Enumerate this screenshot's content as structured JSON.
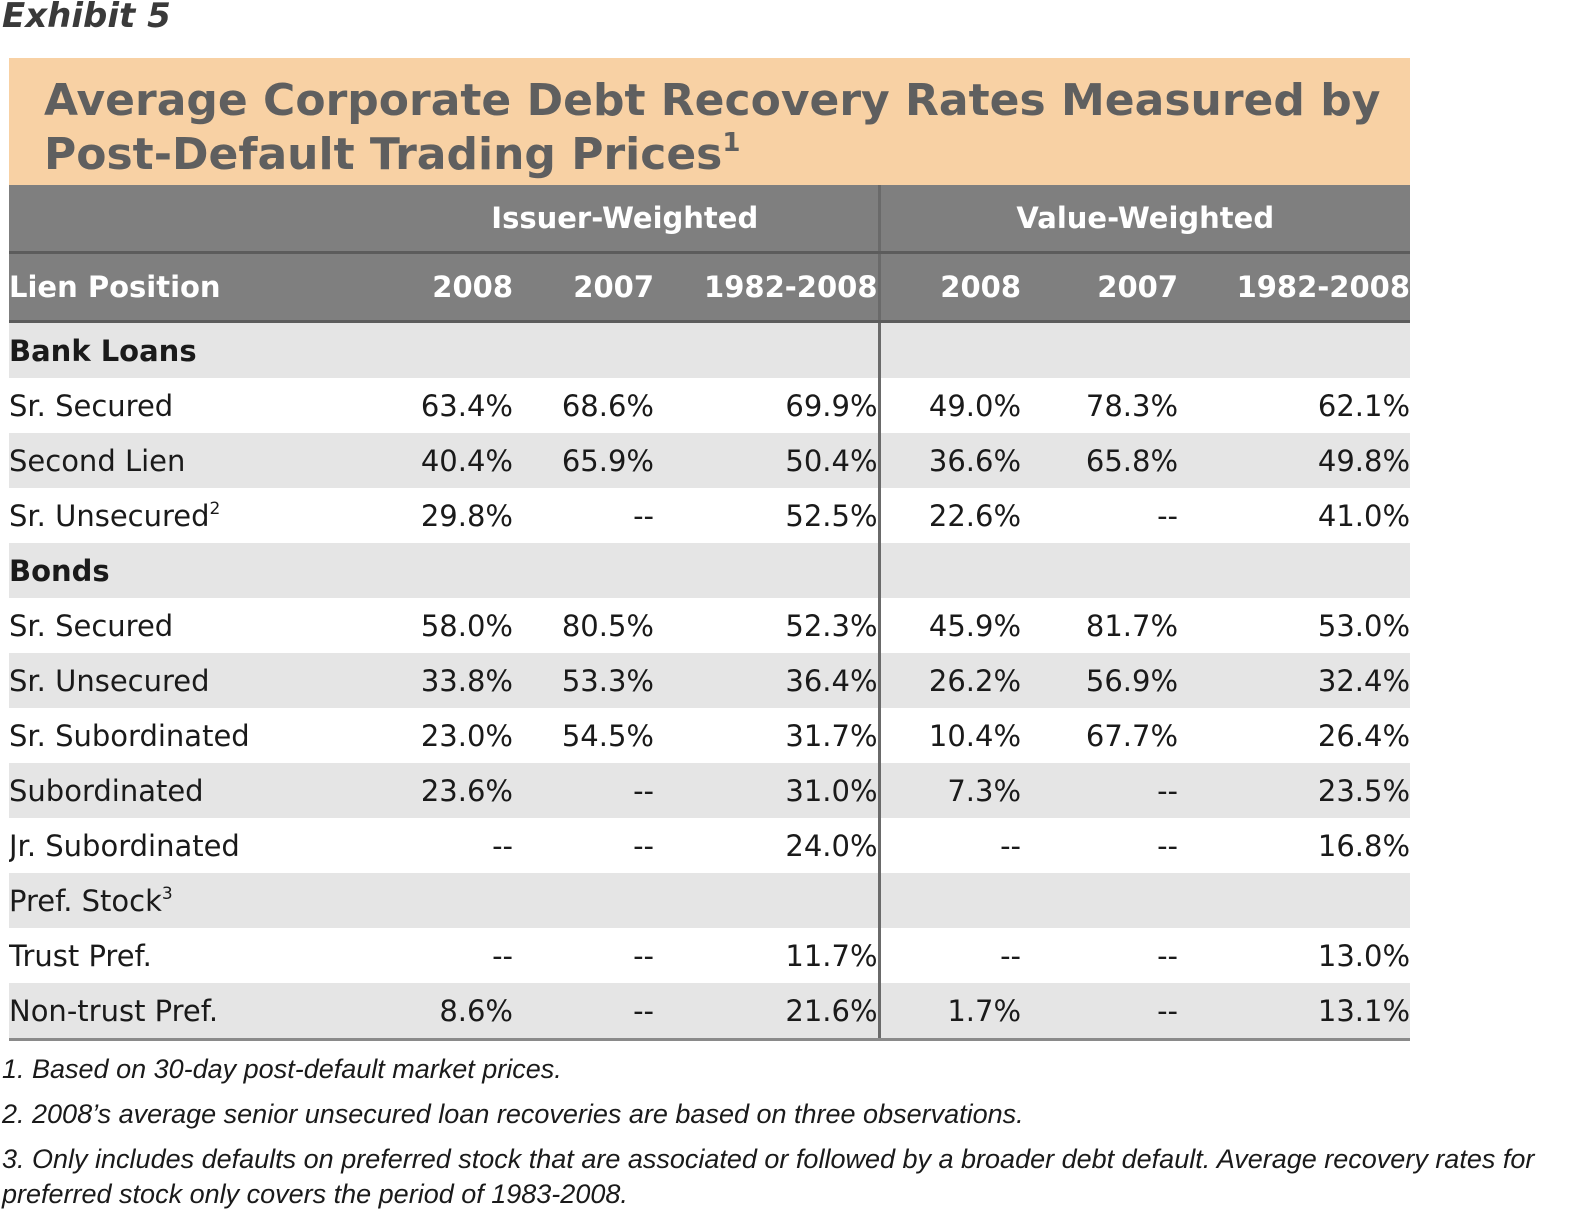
{
  "exhibit_label": "Exhibit 5",
  "title": {
    "text": "Average Corporate Debt Recovery Rates Measured by Post-Default Trading Prices",
    "footnote_ref": "1"
  },
  "table": {
    "group_headers": [
      "Issuer-Weighted",
      "Value-Weighted"
    ],
    "column_headers": [
      "Lien Position",
      "2008",
      "2007",
      "1982-2008",
      "2008",
      "2007",
      "1982-2008"
    ],
    "rows": [
      {
        "type": "section",
        "label": "Bank Loans",
        "sup": "",
        "values": [
          "",
          "",
          "",
          "",
          "",
          ""
        ]
      },
      {
        "type": "data",
        "label": "Sr. Secured",
        "sup": "",
        "values": [
          "63.4%",
          "68.6%",
          "69.9%",
          "49.0%",
          "78.3%",
          "62.1%"
        ]
      },
      {
        "type": "data",
        "label": "Second Lien",
        "sup": "",
        "values": [
          "40.4%",
          "65.9%",
          "50.4%",
          "36.6%",
          "65.8%",
          "49.8%"
        ]
      },
      {
        "type": "data",
        "label": "Sr. Unsecured",
        "sup": "2",
        "values": [
          "29.8%",
          "--",
          "52.5%",
          "22.6%",
          "--",
          "41.0%"
        ]
      },
      {
        "type": "section",
        "label": "Bonds",
        "sup": "",
        "values": [
          "",
          "",
          "",
          "",
          "",
          ""
        ]
      },
      {
        "type": "data",
        "label": "Sr. Secured",
        "sup": "",
        "values": [
          "58.0%",
          "80.5%",
          "52.3%",
          "45.9%",
          "81.7%",
          "53.0%"
        ]
      },
      {
        "type": "data",
        "label": "Sr. Unsecured",
        "sup": "",
        "values": [
          "33.8%",
          "53.3%",
          "36.4%",
          "26.2%",
          "56.9%",
          "32.4%"
        ]
      },
      {
        "type": "data",
        "label": "Sr. Subordinated",
        "sup": "",
        "values": [
          "23.0%",
          "54.5%",
          "31.7%",
          "10.4%",
          "67.7%",
          "26.4%"
        ]
      },
      {
        "type": "data",
        "label": "Subordinated",
        "sup": "",
        "values": [
          "23.6%",
          "--",
          "31.0%",
          "7.3%",
          "--",
          "23.5%"
        ]
      },
      {
        "type": "data",
        "label": "Jr. Subordinated",
        "sup": "",
        "values": [
          "--",
          "--",
          "24.0%",
          "--",
          "--",
          "16.8%"
        ]
      },
      {
        "type": "subsection",
        "label": "Pref. Stock",
        "sup": "3",
        "values": [
          "",
          "",
          "",
          "",
          "",
          ""
        ]
      },
      {
        "type": "data",
        "label": "Trust Pref.",
        "sup": "",
        "values": [
          "--",
          "--",
          "11.7%",
          "--",
          "--",
          "13.0%"
        ]
      },
      {
        "type": "data",
        "label": "Non-trust Pref.",
        "sup": "",
        "values": [
          "8.6%",
          "--",
          "21.6%",
          "1.7%",
          "--",
          "13.1%"
        ]
      }
    ]
  },
  "footnotes": [
    "1. Based on 30-day post-default market prices.",
    "2. 2008’s average senior unsecured loan recoveries are based on three observations.",
    "3. Only includes defaults on preferred stock that are associated or followed by a broader debt default. Average recovery rates for preferred stock only covers the period of 1983-2008."
  ],
  "colors": {
    "title_band": "#f8d1a4",
    "title_text": "#5f5f5f",
    "header_band": "#7f7f7f",
    "row_shade": "#e5e5e5"
  }
}
